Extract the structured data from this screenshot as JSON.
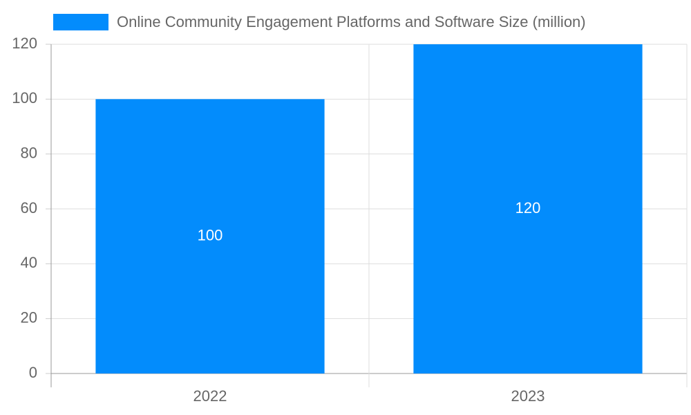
{
  "chart_data": {
    "type": "bar",
    "categories": [
      "2022",
      "2023"
    ],
    "series": [
      {
        "name": "Online Community Engagement Platforms and Software Size (million)",
        "color": "#038cfc",
        "values": [
          100,
          120
        ]
      }
    ],
    "ylim": [
      0,
      120
    ],
    "yticks": [
      0,
      20,
      40,
      60,
      80,
      100,
      120
    ],
    "grid": true,
    "legend": "top"
  }
}
